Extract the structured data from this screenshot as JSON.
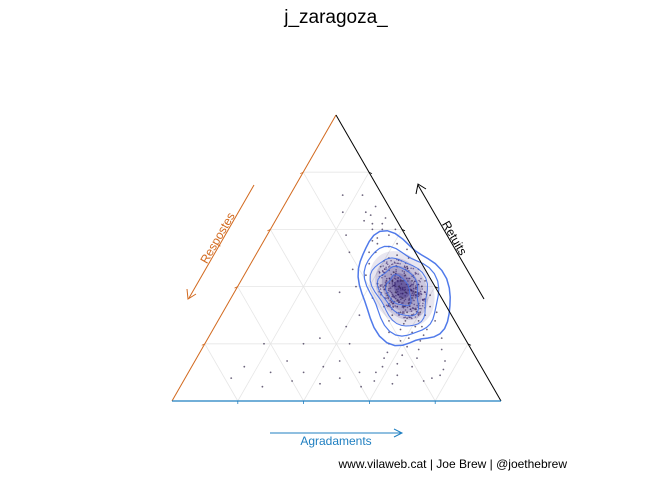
{
  "chart_data": {
    "type": "scatter",
    "subtype": "ternary",
    "title": "j_zaragoza_",
    "axes": {
      "left": {
        "label": "Respostes",
        "color": "#D2691E"
      },
      "right": {
        "label": "Retuits",
        "color": "#000000"
      },
      "bottom": {
        "label": "Agradaments",
        "color": "#1F7FC1"
      }
    },
    "grid": true,
    "grid_breaks": [
      0.2,
      0.4,
      0.6,
      0.8
    ],
    "point_color": "#3b3050",
    "density_contour_color": "#3d6be8",
    "density_fill_color": "#1e0b6e",
    "series": [
      {
        "name": "",
        "points": [
          [
            0.08,
            0.62,
            0.3
          ],
          [
            0.06,
            0.6,
            0.34
          ],
          [
            0.09,
            0.57,
            0.34
          ],
          [
            0.05,
            0.58,
            0.37
          ],
          [
            0.1,
            0.55,
            0.35
          ],
          [
            0.07,
            0.54,
            0.39
          ],
          [
            0.12,
            0.52,
            0.36
          ],
          [
            0.04,
            0.55,
            0.41
          ],
          [
            0.09,
            0.5,
            0.41
          ],
          [
            0.11,
            0.49,
            0.4
          ],
          [
            0.06,
            0.51,
            0.43
          ],
          [
            0.13,
            0.47,
            0.4
          ],
          [
            0.08,
            0.47,
            0.45
          ],
          [
            0.1,
            0.45,
            0.45
          ],
          [
            0.05,
            0.47,
            0.48
          ],
          [
            0.14,
            0.44,
            0.42
          ],
          [
            0.07,
            0.44,
            0.49
          ],
          [
            0.12,
            0.42,
            0.46
          ],
          [
            0.09,
            0.42,
            0.49
          ],
          [
            0.06,
            0.42,
            0.52
          ],
          [
            0.11,
            0.4,
            0.49
          ],
          [
            0.15,
            0.4,
            0.45
          ],
          [
            0.08,
            0.4,
            0.52
          ],
          [
            0.13,
            0.38,
            0.49
          ],
          [
            0.1,
            0.38,
            0.52
          ],
          [
            0.07,
            0.38,
            0.55
          ],
          [
            0.16,
            0.37,
            0.47
          ],
          [
            0.12,
            0.36,
            0.52
          ],
          [
            0.09,
            0.36,
            0.55
          ],
          [
            0.14,
            0.35,
            0.51
          ],
          [
            0.11,
            0.34,
            0.55
          ],
          [
            0.08,
            0.34,
            0.58
          ],
          [
            0.17,
            0.34,
            0.49
          ],
          [
            0.13,
            0.33,
            0.54
          ],
          [
            0.1,
            0.32,
            0.58
          ],
          [
            0.15,
            0.31,
            0.54
          ],
          [
            0.12,
            0.3,
            0.58
          ],
          [
            0.18,
            0.3,
            0.52
          ],
          [
            0.09,
            0.31,
            0.6
          ],
          [
            0.14,
            0.29,
            0.57
          ],
          [
            0.11,
            0.28,
            0.61
          ],
          [
            0.16,
            0.27,
            0.57
          ],
          [
            0.2,
            0.28,
            0.52
          ],
          [
            0.13,
            0.26,
            0.61
          ],
          [
            0.1,
            0.25,
            0.65
          ],
          [
            0.18,
            0.25,
            0.57
          ],
          [
            0.15,
            0.24,
            0.61
          ],
          [
            0.22,
            0.24,
            0.54
          ],
          [
            0.12,
            0.23,
            0.65
          ],
          [
            0.17,
            0.22,
            0.61
          ],
          [
            0.2,
            0.21,
            0.59
          ],
          [
            0.14,
            0.21,
            0.65
          ],
          [
            0.24,
            0.2,
            0.56
          ],
          [
            0.19,
            0.19,
            0.62
          ],
          [
            0.16,
            0.18,
            0.66
          ],
          [
            0.26,
            0.17,
            0.57
          ],
          [
            0.22,
            0.16,
            0.62
          ],
          [
            0.28,
            0.15,
            0.57
          ],
          [
            0.18,
            0.15,
            0.67
          ],
          [
            0.25,
            0.13,
            0.62
          ],
          [
            0.3,
            0.12,
            0.58
          ],
          [
            0.21,
            0.12,
            0.67
          ],
          [
            0.33,
            0.1,
            0.57
          ],
          [
            0.27,
            0.09,
            0.64
          ],
          [
            0.35,
            0.07,
            0.58
          ],
          [
            0.3,
            0.06,
            0.64
          ],
          [
            0.4,
            0.05,
            0.55
          ],
          [
            0.38,
            0.1,
            0.52
          ],
          [
            0.45,
            0.08,
            0.47
          ],
          [
            0.42,
            0.14,
            0.44
          ],
          [
            0.48,
            0.12,
            0.4
          ],
          [
            0.52,
            0.06,
            0.42
          ],
          [
            0.55,
            0.1,
            0.35
          ],
          [
            0.6,
            0.07,
            0.33
          ],
          [
            0.58,
            0.14,
            0.28
          ],
          [
            0.65,
            0.1,
            0.25
          ],
          [
            0.7,
            0.05,
            0.25
          ],
          [
            0.72,
            0.12,
            0.16
          ],
          [
            0.78,
            0.08,
            0.14
          ],
          [
            0.62,
            0.2,
            0.18
          ],
          [
            0.5,
            0.2,
            0.3
          ],
          [
            0.44,
            0.22,
            0.34
          ],
          [
            0.36,
            0.2,
            0.44
          ],
          [
            0.34,
            0.26,
            0.4
          ],
          [
            0.28,
            0.3,
            0.42
          ],
          [
            0.3,
            0.38,
            0.32
          ],
          [
            0.24,
            0.4,
            0.36
          ],
          [
            0.22,
            0.46,
            0.32
          ],
          [
            0.2,
            0.52,
            0.28
          ],
          [
            0.18,
            0.58,
            0.24
          ],
          [
            0.15,
            0.66,
            0.19
          ],
          [
            0.12,
            0.72,
            0.16
          ],
          [
            0.06,
            0.72,
            0.22
          ],
          [
            0.04,
            0.68,
            0.28
          ],
          [
            0.03,
            0.64,
            0.33
          ],
          [
            0.02,
            0.6,
            0.38
          ],
          [
            0.03,
            0.5,
            0.47
          ],
          [
            0.02,
            0.46,
            0.52
          ],
          [
            0.04,
            0.4,
            0.56
          ],
          [
            0.05,
            0.33,
            0.62
          ],
          [
            0.06,
            0.28,
            0.66
          ],
          [
            0.07,
            0.22,
            0.71
          ],
          [
            0.09,
            0.18,
            0.73
          ],
          [
            0.1,
            0.14,
            0.76
          ],
          [
            0.12,
            0.11,
            0.77
          ],
          [
            0.14,
            0.09,
            0.77
          ],
          [
            0.17,
            0.08,
            0.75
          ],
          [
            0.2,
            0.07,
            0.73
          ],
          [
            0.08,
            0.3,
            0.62
          ],
          [
            0.11,
            0.26,
            0.63
          ],
          [
            0.13,
            0.31,
            0.56
          ],
          [
            0.15,
            0.28,
            0.57
          ],
          [
            0.19,
            0.33,
            0.48
          ],
          [
            0.21,
            0.36,
            0.43
          ],
          [
            0.17,
            0.41,
            0.42
          ],
          [
            0.19,
            0.44,
            0.37
          ],
          [
            0.16,
            0.48,
            0.36
          ],
          [
            0.14,
            0.52,
            0.34
          ],
          [
            0.11,
            0.56,
            0.33
          ],
          [
            0.09,
            0.6,
            0.31
          ],
          [
            0.07,
            0.65,
            0.28
          ],
          [
            0.05,
            0.62,
            0.33
          ],
          [
            0.08,
            0.66,
            0.26
          ],
          [
            0.1,
            0.63,
            0.27
          ],
          [
            0.02,
            0.42,
            0.56
          ],
          [
            0.03,
            0.37,
            0.6
          ],
          [
            0.04,
            0.31,
            0.65
          ],
          [
            0.02,
            0.53,
            0.45
          ]
        ]
      }
    ]
  },
  "caption": "www.vilaweb.cat | Joe Brew | @joethebrew"
}
